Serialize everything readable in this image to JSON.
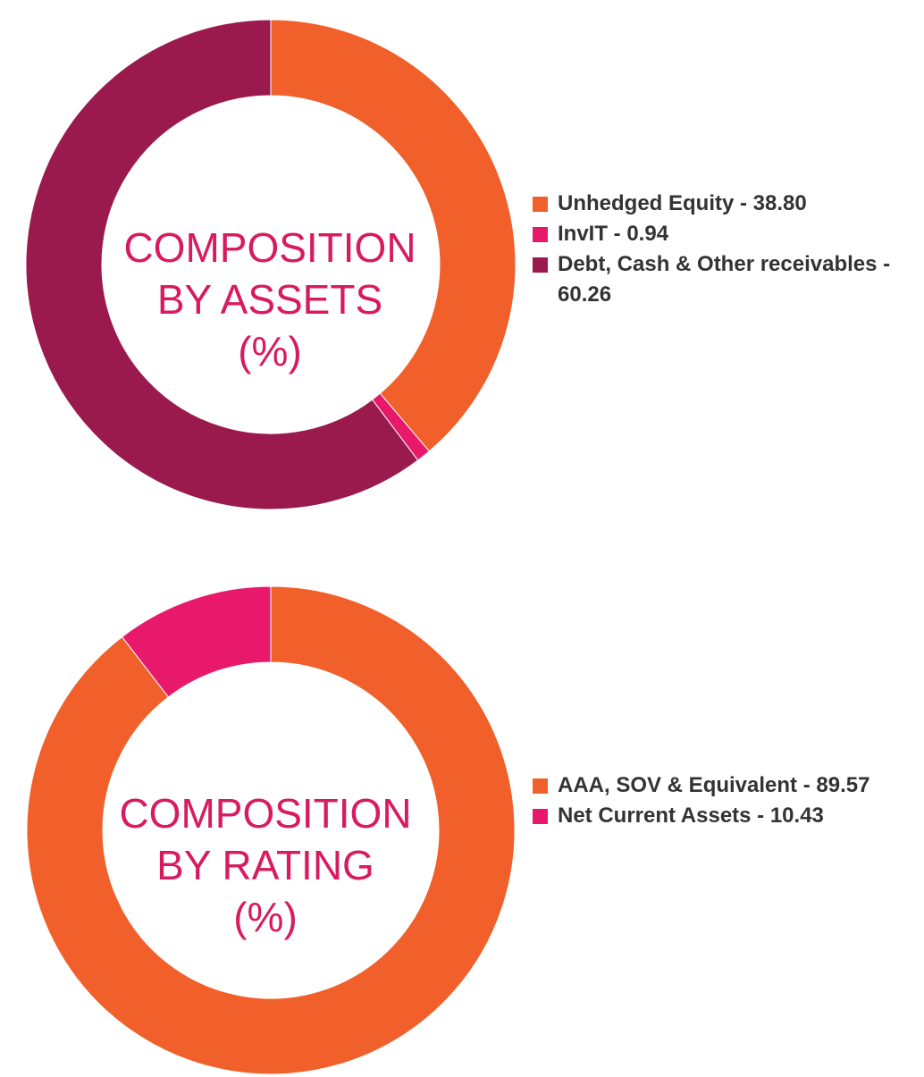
{
  "chart_data": [
    {
      "type": "pie",
      "donut": true,
      "title_lines": [
        "COMPOSITION",
        "BY ASSETS",
        "(%)"
      ],
      "slices": [
        {
          "label": "Unhedged Equity - 38.80",
          "value": 38.8,
          "color": "#f15f2a"
        },
        {
          "label": "InvIT - 0.94",
          "value": 0.94,
          "color": "#e8196b"
        },
        {
          "label": "Debt, Cash & Other receivables - 60.26",
          "value": 60.26,
          "color": "#9a1a4e"
        }
      ],
      "legend_position": "right"
    },
    {
      "type": "pie",
      "donut": true,
      "title_lines": [
        "COMPOSITION",
        "BY RATING",
        "(%)"
      ],
      "slices": [
        {
          "label": "AAA, SOV & Equivalent - 89.57",
          "value": 89.57,
          "color": "#f15f2a"
        },
        {
          "label": "Net Current Assets - 10.43",
          "value": 10.43,
          "color": "#e8196b"
        }
      ],
      "legend_position": "right"
    }
  ]
}
